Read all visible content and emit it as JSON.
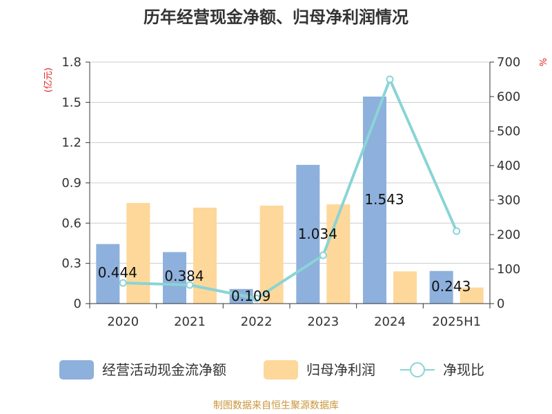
{
  "chart_data": {
    "type": "bar",
    "title": "历年经营现金净额、归母净利润情况",
    "categories": [
      "2020",
      "2021",
      "2022",
      "2023",
      "2024",
      "2025H1"
    ],
    "y_left": {
      "unit_label": "(亿元)",
      "ticks": [
        "0",
        "0.3",
        "0.6",
        "0.9",
        "1.2",
        "1.5",
        "1.8"
      ],
      "ylim": [
        0,
        1.8
      ]
    },
    "y_right": {
      "unit_label": "%",
      "ticks": [
        "0",
        "100",
        "200",
        "300",
        "400",
        "500",
        "600",
        "700"
      ],
      "ylim": [
        0,
        700
      ]
    },
    "grid": true,
    "legend_position": "bottom",
    "series": [
      {
        "name": "经营活动现金流净额",
        "type": "bar",
        "axis": "left",
        "color": "#8eb0dc",
        "values": [
          0.444,
          0.384,
          0.109,
          1.034,
          1.543,
          0.243
        ],
        "labels": [
          "0.444",
          "0.384",
          "0.109",
          "1.034",
          "1.543",
          "0.243"
        ]
      },
      {
        "name": "归母净利润",
        "type": "bar",
        "axis": "left",
        "color": "#fdd89a",
        "values": [
          0.75,
          0.715,
          0.73,
          0.74,
          0.24,
          0.12
        ]
      },
      {
        "name": "净现比",
        "type": "line",
        "axis": "right",
        "color": "#8ad4d6",
        "values": [
          60,
          54,
          15,
          140,
          650,
          210
        ]
      }
    ]
  },
  "source": "制图数据来自恒生聚源数据库"
}
